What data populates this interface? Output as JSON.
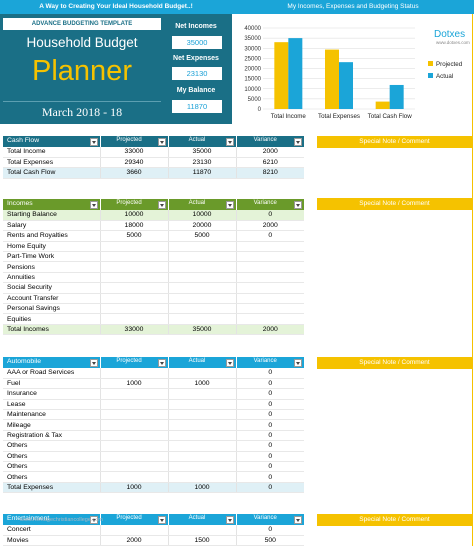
{
  "top_bar": {
    "left_title": "A Way to Creating Your Ideal Household Budget..!",
    "right_title": "My Incomes, Expenses and Budgeting Status"
  },
  "header": {
    "subtitle": "ADVANCE BUDGETING TEMPLATE",
    "title_line1": "Household Budget",
    "title_line2": "Planner",
    "date": "March 2018 - 18",
    "net_incomes_label": "Net Incomes",
    "net_incomes_value": "35000",
    "net_expenses_label": "Net Expenses",
    "net_expenses_value": "23130",
    "my_balance_label": "My Balance",
    "my_balance_value": "11870"
  },
  "chart_data": {
    "type": "bar",
    "categories": [
      "Total Income",
      "Total Expenses",
      "Total Cash Flow"
    ],
    "series": [
      {
        "name": "Projected",
        "values": [
          33000,
          29340,
          3660
        ],
        "color": "#f5c200"
      },
      {
        "name": "Actual",
        "values": [
          35000,
          23130,
          11870
        ],
        "color": "#1ba5d8"
      }
    ],
    "ylim": [
      0,
      40000
    ],
    "yticks": [
      "0",
      "5000",
      "10000",
      "15000",
      "20000",
      "25000",
      "30000",
      "35000",
      "40000"
    ],
    "grid": true,
    "legend": "right",
    "brand": "Dotxes",
    "brand_url": "www.dotxes.com"
  },
  "columns": {
    "projected": "Projected",
    "actual": "Actual",
    "variance": "Variance"
  },
  "cash_flow": {
    "title": "Cash Flow",
    "color": "#1a6f86",
    "rows": [
      [
        "Total Income",
        "33000",
        "35000",
        "2000"
      ],
      [
        "Total Expenses",
        "29340",
        "23130",
        "6210"
      ]
    ],
    "total": [
      "Total Cash Flow",
      "3660",
      "11870",
      "8210"
    ]
  },
  "incomes": {
    "title": "Incomes",
    "color": "#6a9a2a",
    "rows": [
      [
        "Starting Balance",
        "10000",
        "10000",
        "0"
      ],
      [
        "Salary",
        "18000",
        "20000",
        "2000"
      ],
      [
        "Rents and Royalties",
        "5000",
        "5000",
        "0"
      ],
      [
        "Home Equity",
        "",
        "",
        ""
      ],
      [
        "Part-Time Work",
        "",
        "",
        ""
      ],
      [
        "Pensions",
        "",
        "",
        ""
      ],
      [
        "Annuities",
        "",
        "",
        ""
      ],
      [
        "Social Security",
        "",
        "",
        ""
      ],
      [
        "Account Transfer",
        "",
        "",
        ""
      ],
      [
        "Personal Savings",
        "",
        "",
        ""
      ],
      [
        "Equities",
        "",
        "",
        ""
      ]
    ],
    "total": [
      "Total Incomes",
      "33000",
      "35000",
      "2000"
    ]
  },
  "automobile": {
    "title": "Automobile",
    "color": "#1ba5d8",
    "rows": [
      [
        "AAA or Road Services",
        "",
        "",
        "0"
      ],
      [
        "Fuel",
        "1000",
        "1000",
        "0"
      ],
      [
        "Insurance",
        "",
        "",
        "0"
      ],
      [
        "Lease",
        "",
        "",
        "0"
      ],
      [
        "Maintenance",
        "",
        "",
        "0"
      ],
      [
        "Mileage",
        "",
        "",
        "0"
      ],
      [
        "Registration & Tax",
        "",
        "",
        "0"
      ],
      [
        "Others",
        "",
        "",
        "0"
      ],
      [
        "Others",
        "",
        "",
        "0"
      ],
      [
        "Others",
        "",
        "",
        "0"
      ],
      [
        "Others",
        "",
        "",
        "0"
      ]
    ],
    "total": [
      "Total  Expenses",
      "1000",
      "1000",
      "0"
    ]
  },
  "entertainment": {
    "title": "Entertainment",
    "color": "#1ba5d8",
    "rows": [
      [
        "Concert",
        "",
        "",
        "0"
      ],
      [
        "Movies",
        "2000",
        "1500",
        "500"
      ]
    ]
  },
  "notes": {
    "label": "Special Note / Comment"
  },
  "watermark": "www.heritagechristiancollege.com"
}
